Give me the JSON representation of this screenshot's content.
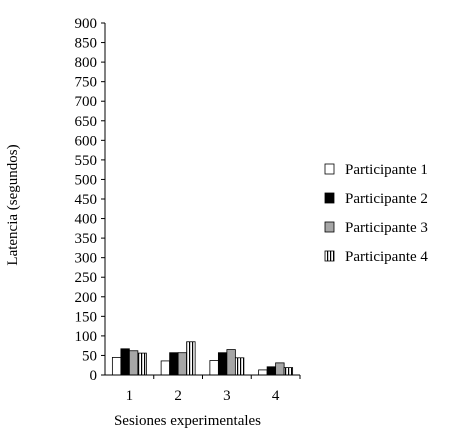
{
  "chart_data": {
    "type": "bar",
    "xlabel": "Sesiones experimentales",
    "ylabel": "Latencia (segundos)",
    "ylim": [
      0,
      900
    ],
    "yticks": [
      0,
      50,
      100,
      150,
      200,
      250,
      300,
      350,
      400,
      450,
      500,
      550,
      600,
      650,
      700,
      750,
      800,
      850,
      900
    ],
    "categories": [
      "1",
      "2",
      "3",
      "4"
    ],
    "grid": false,
    "legend_position": "right",
    "series": [
      {
        "name": "Participante 1",
        "style": "white",
        "values": [
          45,
          36,
          37,
          13
        ]
      },
      {
        "name": "Participante 2",
        "style": "black",
        "values": [
          67,
          57,
          57,
          21
        ]
      },
      {
        "name": "Participante 3",
        "style": "gray",
        "values": [
          62,
          57,
          65,
          31
        ]
      },
      {
        "name": "Participante 4",
        "style": "vertical-stripes",
        "values": [
          56,
          85,
          44,
          19
        ]
      }
    ],
    "colors": {
      "black": "#000000",
      "gray": "#a6a6a6",
      "white": "#ffffff",
      "stripe": "#000000"
    }
  }
}
